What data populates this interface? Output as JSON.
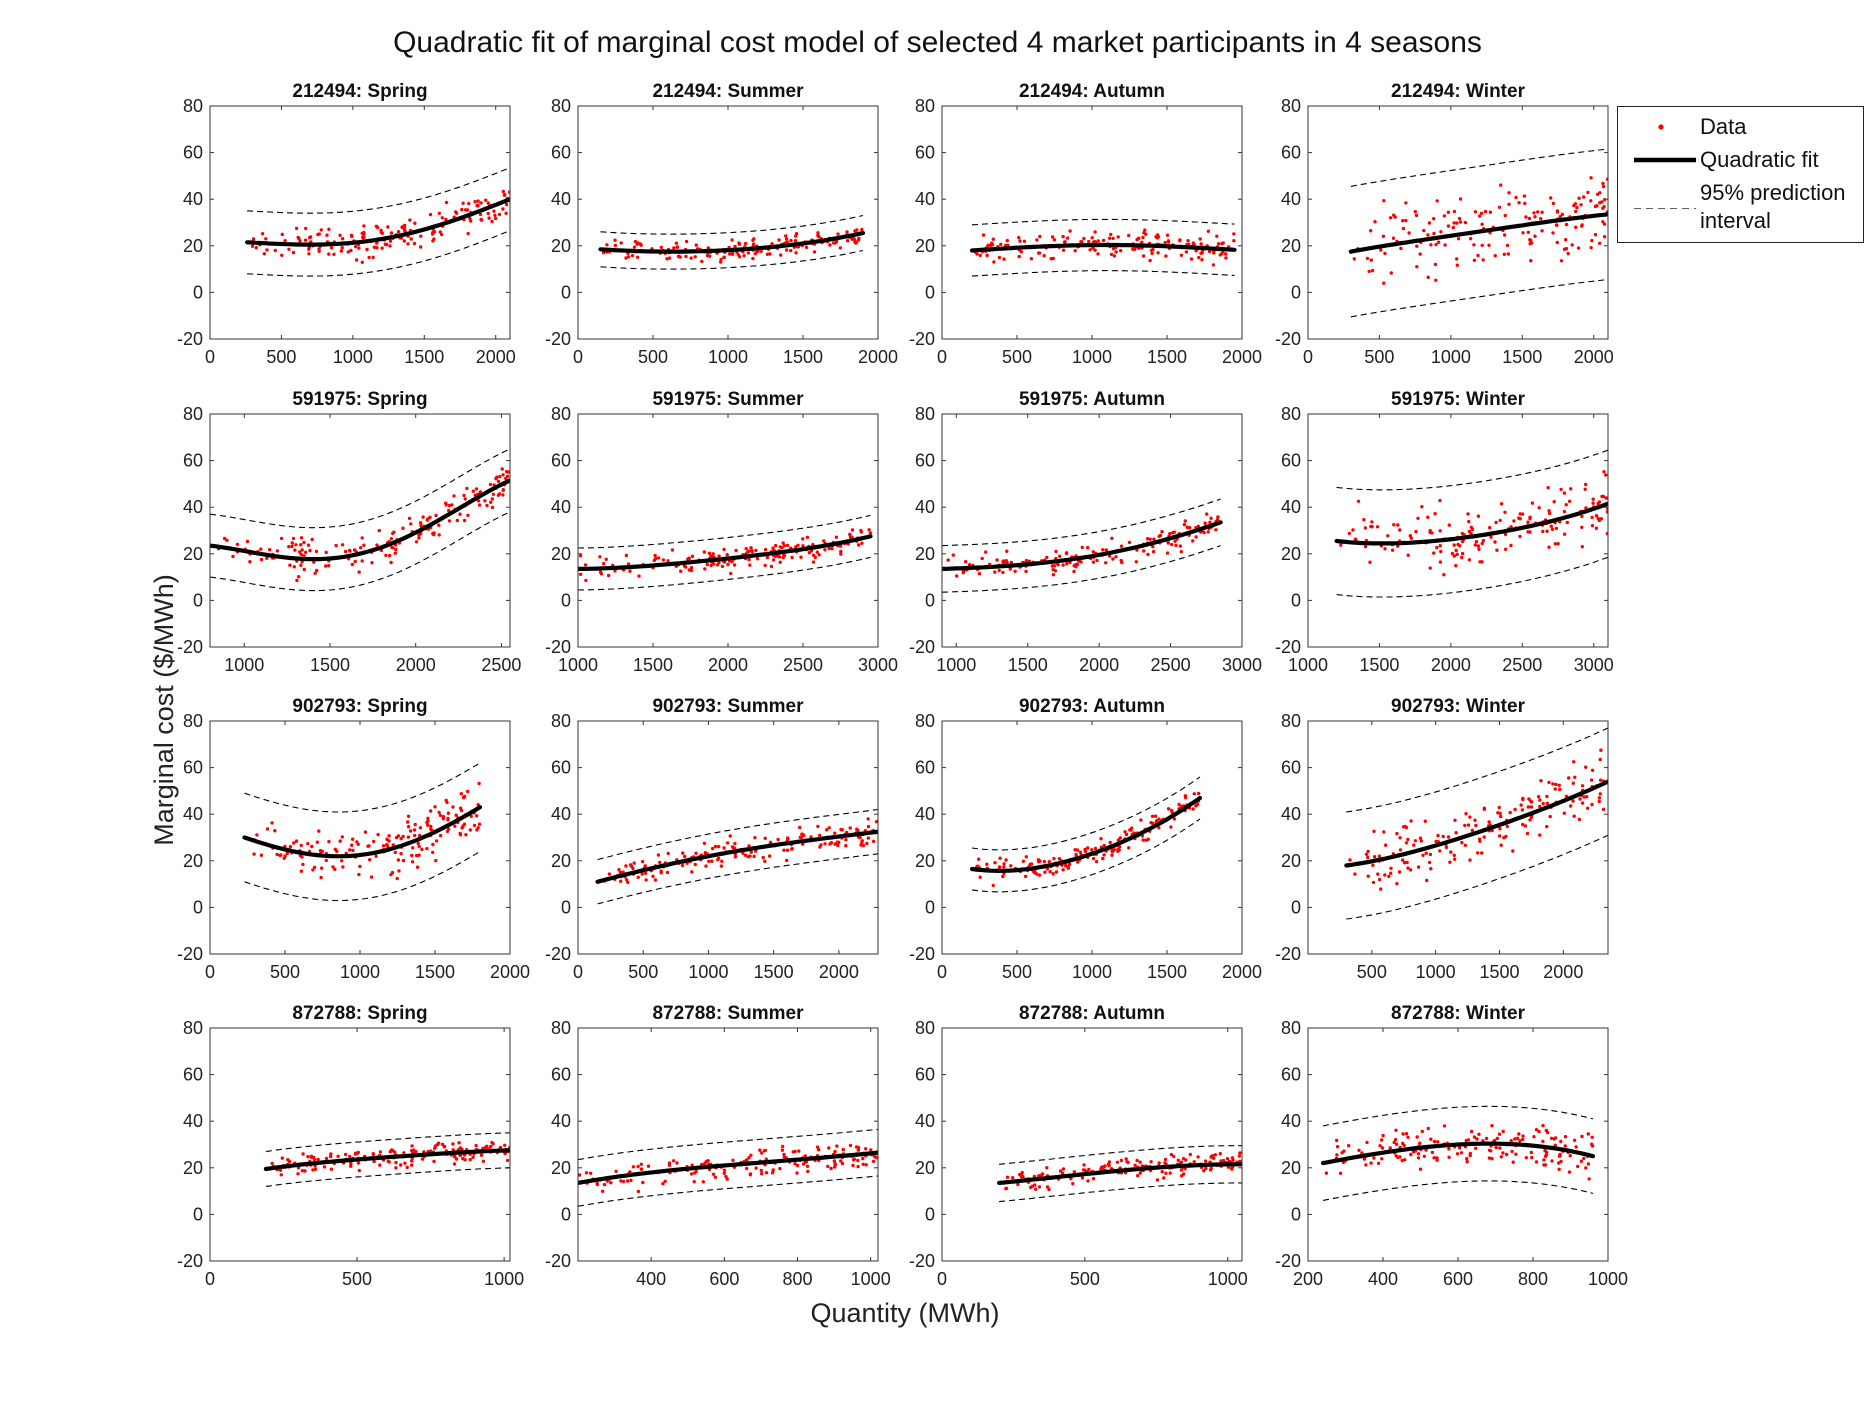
{
  "figure": {
    "title": "Quadratic fit of marginal cost model of selected 4 market participants in 4 seasons",
    "xlabel": "Quantity (MWh)",
    "ylabel": "Marginal cost ($/MWh)"
  },
  "legend": {
    "data": "Data",
    "fit": "Quadratic fit",
    "interval": "95% prediction interval",
    "interval_line1": "95% prediction",
    "interval_line2": "interval"
  },
  "colors": {
    "data": "#ff0000",
    "fit": "#000000",
    "interval": "#000000"
  },
  "chart_data": [
    {
      "type": "scatter",
      "title": "212494: Spring",
      "xlim": [
        0,
        2100
      ],
      "ylim": [
        -20,
        80
      ],
      "xticks": [
        0,
        500,
        1000,
        1500,
        2000
      ],
      "yticks": [
        -20,
        0,
        20,
        40,
        60,
        80
      ],
      "fit": [
        [
          260,
          21.5
        ],
        [
          700,
          20.5
        ],
        [
          1100,
          22
        ],
        [
          1500,
          27
        ],
        [
          2100,
          40
        ]
      ],
      "band": 13.5
    },
    {
      "type": "scatter",
      "title": "212494: Summer",
      "xlim": [
        0,
        2000
      ],
      "ylim": [
        -20,
        80
      ],
      "xticks": [
        0,
        500,
        1000,
        1500,
        2000
      ],
      "yticks": [
        -20,
        0,
        20,
        40,
        60,
        80
      ],
      "fit": [
        [
          150,
          18.5
        ],
        [
          600,
          17.5
        ],
        [
          1100,
          18.5
        ],
        [
          1500,
          21
        ],
        [
          1900,
          25.5
        ]
      ],
      "band": 7.5
    },
    {
      "type": "scatter",
      "title": "212494: Autumn",
      "xlim": [
        0,
        2000
      ],
      "ylim": [
        -20,
        80
      ],
      "xticks": [
        0,
        500,
        1000,
        1500,
        2000
      ],
      "yticks": [
        -20,
        0,
        20,
        40,
        60,
        80
      ],
      "fit": [
        [
          200,
          18
        ],
        [
          700,
          19.8
        ],
        [
          1200,
          20.3
        ],
        [
          1600,
          19.5
        ],
        [
          1950,
          18.3
        ]
      ],
      "band": 11
    },
    {
      "type": "scatter",
      "title": "212494: Winter",
      "xlim": [
        0,
        2100
      ],
      "ylim": [
        -20,
        80
      ],
      "xticks": [
        0,
        500,
        1000,
        1500,
        2000
      ],
      "yticks": [
        -20,
        0,
        20,
        40,
        60,
        80
      ],
      "fit": [
        [
          300,
          17.5
        ],
        [
          800,
          22.5
        ],
        [
          1300,
          27
        ],
        [
          1700,
          30.5
        ],
        [
          2100,
          33.5
        ]
      ],
      "band": 28
    },
    {
      "type": "scatter",
      "title": "591975: Spring",
      "xlim": [
        800,
        2550
      ],
      "ylim": [
        -20,
        80
      ],
      "xticks": [
        1000,
        1500,
        2000,
        2500
      ],
      "yticks": [
        -20,
        0,
        20,
        40,
        60,
        80
      ],
      "fit": [
        [
          800,
          23.5
        ],
        [
          1300,
          18
        ],
        [
          1700,
          20.5
        ],
        [
          2100,
          33
        ],
        [
          2550,
          51.5
        ]
      ],
      "band": 13.5
    },
    {
      "type": "scatter",
      "title": "591975: Summer",
      "xlim": [
        1000,
        3000
      ],
      "ylim": [
        -20,
        80
      ],
      "xticks": [
        1000,
        1500,
        2000,
        2500,
        3000
      ],
      "yticks": [
        -20,
        0,
        20,
        40,
        60,
        80
      ],
      "fit": [
        [
          1000,
          13.5
        ],
        [
          1500,
          15
        ],
        [
          2000,
          18
        ],
        [
          2500,
          22
        ],
        [
          2950,
          27.5
        ]
      ],
      "band": 9
    },
    {
      "type": "scatter",
      "title": "591975: Autumn",
      "xlim": [
        900,
        3000
      ],
      "ylim": [
        -20,
        80
      ],
      "xticks": [
        1000,
        1500,
        2000,
        2500,
        3000
      ],
      "yticks": [
        -20,
        0,
        20,
        40,
        60,
        80
      ],
      "fit": [
        [
          900,
          13.5
        ],
        [
          1400,
          15
        ],
        [
          1900,
          18.5
        ],
        [
          2400,
          25
        ],
        [
          2850,
          33.5
        ]
      ],
      "band": 10
    },
    {
      "type": "scatter",
      "title": "591975: Winter",
      "xlim": [
        1000,
        3100
      ],
      "ylim": [
        -20,
        80
      ],
      "xticks": [
        1000,
        1500,
        2000,
        2500,
        3000
      ],
      "yticks": [
        -20,
        0,
        20,
        40,
        60,
        80
      ],
      "fit": [
        [
          1200,
          25.5
        ],
        [
          1600,
          24.5
        ],
        [
          2100,
          27
        ],
        [
          2600,
          32.5
        ],
        [
          3100,
          41.5
        ]
      ],
      "band": 23
    },
    {
      "type": "scatter",
      "title": "902793: Spring",
      "xlim": [
        0,
        2000
      ],
      "ylim": [
        -20,
        80
      ],
      "xticks": [
        0,
        500,
        1000,
        1500,
        2000
      ],
      "yticks": [
        -20,
        0,
        20,
        40,
        60,
        80
      ],
      "fit": [
        [
          230,
          30
        ],
        [
          600,
          23.5
        ],
        [
          900,
          22
        ],
        [
          1300,
          27
        ],
        [
          1800,
          43
        ]
      ],
      "band": 19
    },
    {
      "type": "scatter",
      "title": "902793: Summer",
      "xlim": [
        0,
        2300
      ],
      "ylim": [
        -20,
        80
      ],
      "xticks": [
        0,
        500,
        1000,
        1500,
        2000
      ],
      "yticks": [
        -20,
        0,
        20,
        40,
        60,
        80
      ],
      "fit": [
        [
          150,
          11
        ],
        [
          700,
          18.5
        ],
        [
          1200,
          24
        ],
        [
          1800,
          29
        ],
        [
          2300,
          32.5
        ]
      ],
      "band": 9.5
    },
    {
      "type": "scatter",
      "title": "902793: Autumn",
      "xlim": [
        0,
        2000
      ],
      "ylim": [
        -20,
        80
      ],
      "xticks": [
        0,
        500,
        1000,
        1500,
        2000
      ],
      "yticks": [
        -20,
        0,
        20,
        40,
        60,
        80
      ],
      "fit": [
        [
          200,
          16.5
        ],
        [
          500,
          16
        ],
        [
          900,
          21
        ],
        [
          1300,
          31
        ],
        [
          1720,
          47
        ]
      ],
      "band": 9
    },
    {
      "type": "scatter",
      "title": "902793: Winter",
      "xlim": [
        0,
        2350
      ],
      "ylim": [
        -20,
        80
      ],
      "xticks": [
        500,
        1000,
        1500,
        2000
      ],
      "yticks": [
        -20,
        0,
        20,
        40,
        60,
        80
      ],
      "fit": [
        [
          300,
          18
        ],
        [
          900,
          25
        ],
        [
          1400,
          33.5
        ],
        [
          1900,
          43.5
        ],
        [
          2350,
          54
        ]
      ],
      "band": 23
    },
    {
      "type": "scatter",
      "title": "872788: Spring",
      "xlim": [
        0,
        1020
      ],
      "ylim": [
        -20,
        80
      ],
      "xticks": [
        0,
        500,
        1000
      ],
      "yticks": [
        -20,
        0,
        20,
        40,
        60,
        80
      ],
      "fit": [
        [
          190,
          19.5
        ],
        [
          400,
          22.5
        ],
        [
          600,
          24.5
        ],
        [
          800,
          26.2
        ],
        [
          1020,
          27.5
        ]
      ],
      "band": 7.5
    },
    {
      "type": "scatter",
      "title": "872788: Summer",
      "xlim": [
        200,
        1020
      ],
      "ylim": [
        -20,
        80
      ],
      "xticks": [
        400,
        600,
        800,
        1000
      ],
      "yticks": [
        -20,
        0,
        20,
        40,
        60,
        80
      ],
      "fit": [
        [
          200,
          13.5
        ],
        [
          400,
          18
        ],
        [
          600,
          21
        ],
        [
          800,
          23.5
        ],
        [
          1020,
          26.5
        ]
      ],
      "band": 10
    },
    {
      "type": "scatter",
      "title": "872788: Autumn",
      "xlim": [
        0,
        1050
      ],
      "ylim": [
        -20,
        80
      ],
      "xticks": [
        0,
        500,
        1000
      ],
      "yticks": [
        -20,
        0,
        20,
        40,
        60,
        80
      ],
      "fit": [
        [
          200,
          13.5
        ],
        [
          400,
          16
        ],
        [
          600,
          18.5
        ],
        [
          800,
          20.5
        ],
        [
          1050,
          21.5
        ]
      ],
      "band": 8
    },
    {
      "type": "scatter",
      "title": "872788: Winter",
      "xlim": [
        200,
        1000
      ],
      "ylim": [
        -20,
        80
      ],
      "xticks": [
        200,
        400,
        600,
        800,
        1000
      ],
      "yticks": [
        -20,
        0,
        20,
        40,
        60,
        80
      ],
      "fit": [
        [
          240,
          22
        ],
        [
          400,
          26.5
        ],
        [
          600,
          30
        ],
        [
          800,
          29.5
        ],
        [
          960,
          25
        ]
      ],
      "band": 16
    }
  ]
}
